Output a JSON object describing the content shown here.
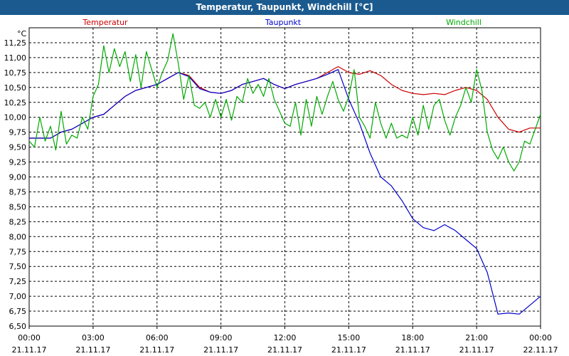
{
  "window": {
    "title": "Temperatur, Taupunkt, Windchill [°C]"
  },
  "chart_data": {
    "type": "line",
    "title": "Temperatur, Taupunkt, Windchill [°C]",
    "ylabel": "°C",
    "xlabel": "",
    "ylim": [
      6.5,
      11.5
    ],
    "xlim_hours": [
      0,
      24
    ],
    "grid": true,
    "legend_placement": "top",
    "y_ticks": [
      "6,50",
      "6,75",
      "7,00",
      "7,25",
      "7,50",
      "7,75",
      "8,00",
      "8,25",
      "8,50",
      "8,75",
      "9,00",
      "9,25",
      "9,50",
      "9,75",
      "10,00",
      "10,25",
      "10,50",
      "10,75",
      "11,00",
      "11,25"
    ],
    "x_ticks": [
      {
        "time": "00:00",
        "date": "21.11.17"
      },
      {
        "time": "03:00",
        "date": "21.11.17"
      },
      {
        "time": "06:00",
        "date": "21.11.17"
      },
      {
        "time": "09:00",
        "date": "21.11.17"
      },
      {
        "time": "12:00",
        "date": "21.11.17"
      },
      {
        "time": "15:00",
        "date": "21.11.17"
      },
      {
        "time": "18:00",
        "date": "21.11.17"
      },
      {
        "time": "21:00",
        "date": "21.11.17"
      },
      {
        "time": "00:00",
        "date": "22.11.17"
      }
    ],
    "series": [
      {
        "name": "Temperatur",
        "color": "#cc0000",
        "points": [
          [
            0,
            9.65
          ],
          [
            0.5,
            9.65
          ],
          [
            1,
            9.65
          ],
          [
            1.5,
            9.75
          ],
          [
            2,
            9.8
          ],
          [
            2.5,
            9.9
          ],
          [
            3,
            10.0
          ],
          [
            3.5,
            10.05
          ],
          [
            4,
            10.2
          ],
          [
            4.5,
            10.35
          ],
          [
            5,
            10.45
          ],
          [
            5.5,
            10.5
          ],
          [
            6,
            10.55
          ],
          [
            6.5,
            10.65
          ],
          [
            7,
            10.75
          ],
          [
            7.5,
            10.7
          ],
          [
            8,
            10.5
          ],
          [
            8.5,
            10.42
          ],
          [
            9,
            10.4
          ],
          [
            9.5,
            10.45
          ],
          [
            10,
            10.55
          ],
          [
            10.5,
            10.6
          ],
          [
            11,
            10.65
          ],
          [
            11.5,
            10.55
          ],
          [
            12,
            10.48
          ],
          [
            12.5,
            10.55
          ],
          [
            13,
            10.6
          ],
          [
            13.5,
            10.65
          ],
          [
            14,
            10.75
          ],
          [
            14.5,
            10.85
          ],
          [
            15,
            10.75
          ],
          [
            15.5,
            10.72
          ],
          [
            16,
            10.78
          ],
          [
            16.5,
            10.7
          ],
          [
            17,
            10.55
          ],
          [
            17.5,
            10.45
          ],
          [
            18,
            10.4
          ],
          [
            18.5,
            10.38
          ],
          [
            19,
            10.4
          ],
          [
            19.5,
            10.38
          ],
          [
            20,
            10.45
          ],
          [
            20.5,
            10.5
          ],
          [
            21,
            10.45
          ],
          [
            21.5,
            10.3
          ],
          [
            22,
            10.0
          ],
          [
            22.5,
            9.8
          ],
          [
            23,
            9.75
          ],
          [
            23.5,
            9.82
          ],
          [
            24,
            9.82
          ]
        ]
      },
      {
        "name": "Taupunkt",
        "color": "#0000cc",
        "points": [
          [
            0,
            9.65
          ],
          [
            0.5,
            9.65
          ],
          [
            1,
            9.65
          ],
          [
            1.5,
            9.75
          ],
          [
            2,
            9.8
          ],
          [
            2.5,
            9.9
          ],
          [
            3,
            10.0
          ],
          [
            3.5,
            10.05
          ],
          [
            4,
            10.2
          ],
          [
            4.5,
            10.35
          ],
          [
            5,
            10.45
          ],
          [
            5.5,
            10.5
          ],
          [
            6,
            10.55
          ],
          [
            6.5,
            10.65
          ],
          [
            7,
            10.75
          ],
          [
            7.5,
            10.68
          ],
          [
            8,
            10.48
          ],
          [
            8.5,
            10.42
          ],
          [
            9,
            10.4
          ],
          [
            9.5,
            10.45
          ],
          [
            10,
            10.55
          ],
          [
            10.5,
            10.6
          ],
          [
            11,
            10.65
          ],
          [
            11.5,
            10.55
          ],
          [
            12,
            10.48
          ],
          [
            12.5,
            10.55
          ],
          [
            13,
            10.6
          ],
          [
            13.5,
            10.65
          ],
          [
            14,
            10.72
          ],
          [
            14.5,
            10.8
          ],
          [
            15,
            10.3
          ],
          [
            15.5,
            9.9
          ],
          [
            16,
            9.4
          ],
          [
            16.5,
            9.0
          ],
          [
            17,
            8.85
          ],
          [
            17.5,
            8.6
          ],
          [
            18,
            8.3
          ],
          [
            18.5,
            8.15
          ],
          [
            19,
            8.1
          ],
          [
            19.5,
            8.2
          ],
          [
            20,
            8.1
          ],
          [
            20.5,
            7.95
          ],
          [
            21,
            7.8
          ],
          [
            21.5,
            7.4
          ],
          [
            22,
            6.7
          ],
          [
            22.5,
            6.72
          ],
          [
            23,
            6.7
          ],
          [
            23.5,
            6.85
          ],
          [
            24,
            7.0
          ]
        ]
      },
      {
        "name": "Windchill",
        "color": "#00aa00",
        "points": [
          [
            0,
            9.6
          ],
          [
            0.25,
            9.5
          ],
          [
            0.5,
            10.0
          ],
          [
            0.75,
            9.6
          ],
          [
            1,
            9.85
          ],
          [
            1.25,
            9.45
          ],
          [
            1.5,
            10.1
          ],
          [
            1.75,
            9.55
          ],
          [
            2,
            9.7
          ],
          [
            2.25,
            9.65
          ],
          [
            2.5,
            10.0
          ],
          [
            2.75,
            9.8
          ],
          [
            3,
            10.35
          ],
          [
            3.25,
            10.55
          ],
          [
            3.5,
            11.2
          ],
          [
            3.75,
            10.75
          ],
          [
            4,
            11.15
          ],
          [
            4.25,
            10.85
          ],
          [
            4.5,
            11.1
          ],
          [
            4.75,
            10.6
          ],
          [
            5,
            11.05
          ],
          [
            5.25,
            10.5
          ],
          [
            5.5,
            11.1
          ],
          [
            5.75,
            10.8
          ],
          [
            6,
            10.5
          ],
          [
            6.25,
            10.75
          ],
          [
            6.5,
            10.95
          ],
          [
            6.75,
            11.4
          ],
          [
            7,
            10.9
          ],
          [
            7.25,
            10.3
          ],
          [
            7.5,
            10.7
          ],
          [
            7.75,
            10.2
          ],
          [
            8,
            10.15
          ],
          [
            8.25,
            10.25
          ],
          [
            8.5,
            10.0
          ],
          [
            8.75,
            10.3
          ],
          [
            9,
            10.0
          ],
          [
            9.25,
            10.3
          ],
          [
            9.5,
            9.95
          ],
          [
            9.75,
            10.35
          ],
          [
            10,
            10.25
          ],
          [
            10.25,
            10.65
          ],
          [
            10.5,
            10.4
          ],
          [
            10.75,
            10.55
          ],
          [
            11,
            10.35
          ],
          [
            11.25,
            10.65
          ],
          [
            11.5,
            10.3
          ],
          [
            11.75,
            10.1
          ],
          [
            12,
            9.9
          ],
          [
            12.25,
            9.85
          ],
          [
            12.5,
            10.25
          ],
          [
            12.75,
            9.7
          ],
          [
            13,
            10.3
          ],
          [
            13.25,
            9.85
          ],
          [
            13.5,
            10.35
          ],
          [
            13.75,
            10.05
          ],
          [
            14,
            10.35
          ],
          [
            14.25,
            10.6
          ],
          [
            14.5,
            10.3
          ],
          [
            14.75,
            10.1
          ],
          [
            15,
            10.35
          ],
          [
            15.25,
            10.8
          ],
          [
            15.5,
            10.0
          ],
          [
            15.75,
            9.85
          ],
          [
            16,
            9.65
          ],
          [
            16.25,
            10.25
          ],
          [
            16.5,
            9.9
          ],
          [
            16.75,
            9.65
          ],
          [
            17,
            9.9
          ],
          [
            17.25,
            9.65
          ],
          [
            17.5,
            9.7
          ],
          [
            17.75,
            9.65
          ],
          [
            18,
            10.0
          ],
          [
            18.25,
            9.7
          ],
          [
            18.5,
            10.2
          ],
          [
            18.75,
            9.8
          ],
          [
            19,
            10.2
          ],
          [
            19.25,
            10.3
          ],
          [
            19.5,
            9.95
          ],
          [
            19.75,
            9.7
          ],
          [
            20,
            10.0
          ],
          [
            20.25,
            10.2
          ],
          [
            20.5,
            10.5
          ],
          [
            20.75,
            10.25
          ],
          [
            21,
            10.8
          ],
          [
            21.25,
            10.45
          ],
          [
            21.5,
            9.75
          ],
          [
            21.75,
            9.45
          ],
          [
            22,
            9.3
          ],
          [
            22.25,
            9.5
          ],
          [
            22.5,
            9.25
          ],
          [
            22.75,
            9.1
          ],
          [
            23,
            9.25
          ],
          [
            23.25,
            9.6
          ],
          [
            23.5,
            9.55
          ],
          [
            23.75,
            9.8
          ],
          [
            24,
            10.05
          ]
        ]
      }
    ]
  }
}
